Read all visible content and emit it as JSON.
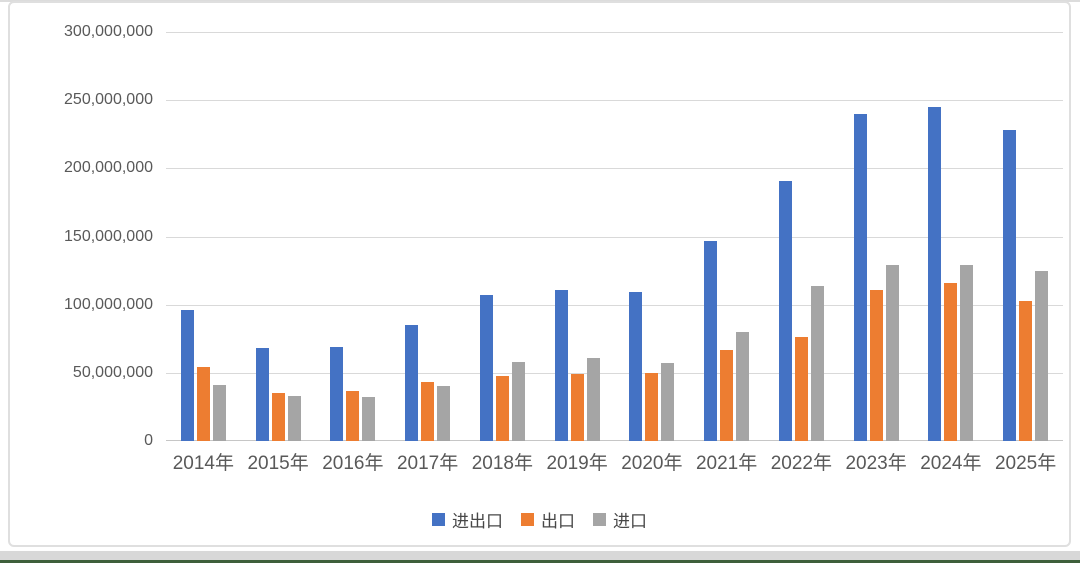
{
  "chart_data": {
    "type": "bar",
    "title": "",
    "categories": [
      "2014年",
      "2015年",
      "2016年",
      "2017年",
      "2018年",
      "2019年",
      "2020年",
      "2021年",
      "2022年",
      "2023年",
      "2024年",
      "2025年"
    ],
    "series": [
      {
        "name": "进出口",
        "color": "#4472C4",
        "values": [
          96000000,
          68000000,
          69000000,
          85000000,
          107000000,
          111000000,
          109000000,
          147000000,
          191000000,
          240000000,
          245000000,
          228000000
        ]
      },
      {
        "name": "出口",
        "color": "#ED7D31",
        "values": [
          54000000,
          35000000,
          37000000,
          43000000,
          48000000,
          49000000,
          50000000,
          67000000,
          76000000,
          111000000,
          116000000,
          103000000
        ]
      },
      {
        "name": "进口",
        "color": "#A5A5A5",
        "values": [
          41000000,
          33000000,
          32000000,
          40000000,
          58000000,
          61000000,
          57000000,
          80000000,
          114000000,
          129000000,
          129000000,
          125000000
        ]
      }
    ],
    "xlabel": "",
    "ylabel": "",
    "ylim": [
      0,
      300000000
    ],
    "y_ticks": [
      "300,000,000",
      "250,000,000",
      "200,000,000",
      "150,000,000",
      "100,000,000",
      "50,000,000",
      "0"
    ],
    "grid": true,
    "legend_position": "bottom",
    "legend": [
      "进出口",
      "出口",
      "进口"
    ]
  },
  "colors": {
    "gridline": "#D9D9D9",
    "baseline": "#C6C6C6",
    "axis_text": "#595959",
    "card_border": "#DFDFDF",
    "top_strip": "#DCDCDC",
    "bottom_gray": "#D8D8D8",
    "bottom_green": "#3E5F3B"
  }
}
